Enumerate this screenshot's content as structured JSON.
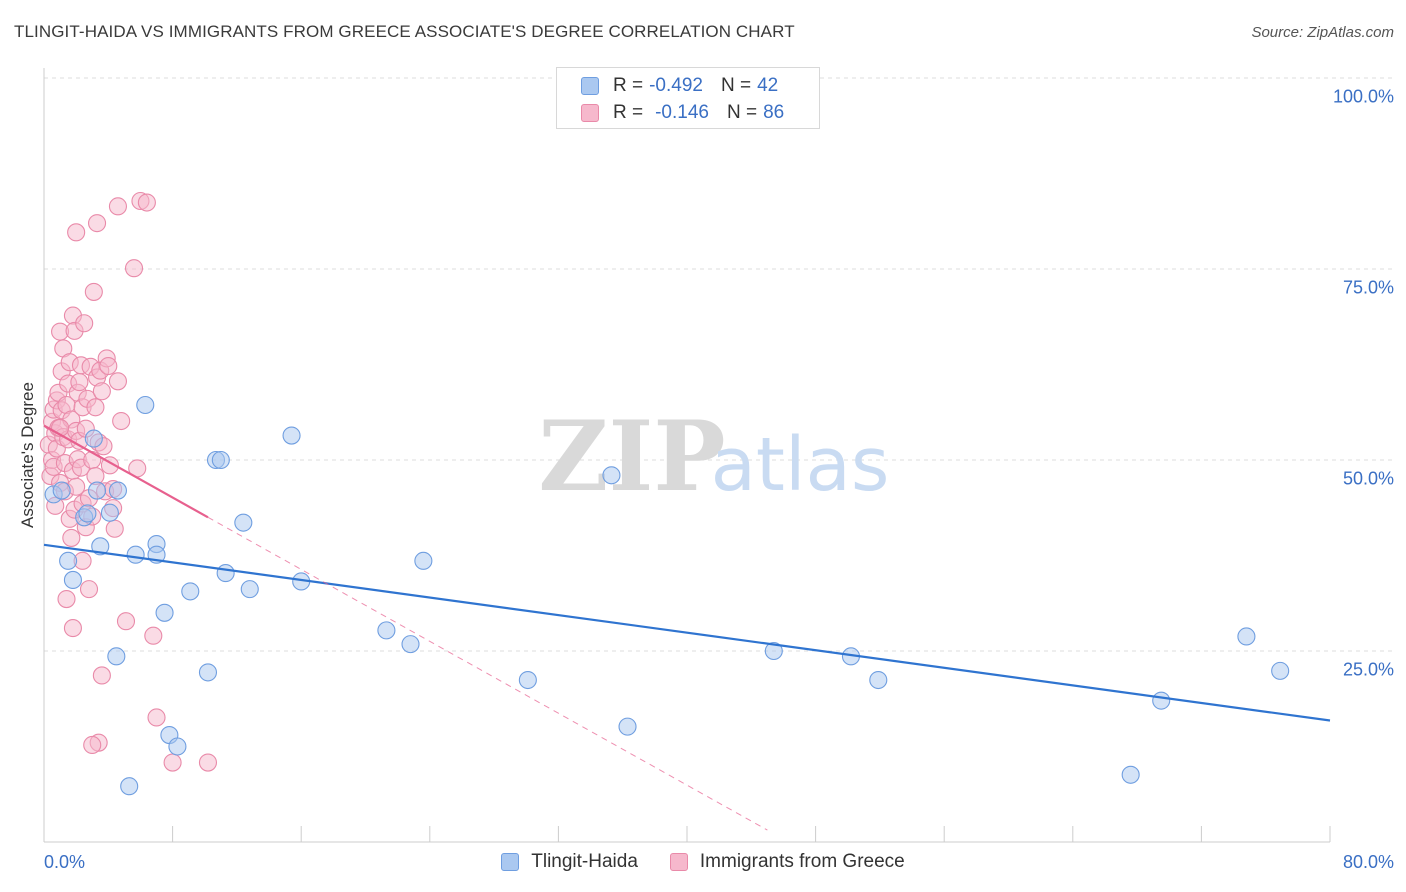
{
  "header": {
    "title": "TLINGIT-HAIDA VS IMMIGRANTS FROM GREECE ASSOCIATE'S DEGREE CORRELATION CHART",
    "source": "Source: ZipAtlas.com"
  },
  "watermark": {
    "zip": "ZIP",
    "atlas": "atlas"
  },
  "legend_top": {
    "rows": [
      {
        "r_label": "R =",
        "r_value": "-0.492",
        "n_label": "N =",
        "n_value": "42"
      },
      {
        "r_label": "R =",
        "r_value": "-0.146",
        "n_label": "N =",
        "n_value": "86"
      }
    ]
  },
  "colors": {
    "blue_fill": "#aac8f0",
    "blue_stroke": "#6f9ee0",
    "blue_line": "#2f74d0",
    "pink_fill": "#f6b8cc",
    "pink_stroke": "#e98aa9",
    "pink_line": "#e7608e",
    "grid": "#dddddd",
    "tick_text": "#3a6fc4"
  },
  "chart_data": {
    "type": "scatter",
    "title": "TLINGIT-HAIDA VS IMMIGRANTS FROM GREECE ASSOCIATE'S DEGREE CORRELATION CHART",
    "xlabel": "",
    "ylabel": "Associate's Degree",
    "xlim": [
      0,
      80
    ],
    "ylim": [
      0,
      100
    ],
    "x_tick_labels": [
      "0.0%",
      "80.0%"
    ],
    "y_ticks": [
      25,
      50,
      75,
      100
    ],
    "y_tick_labels": [
      "25.0%",
      "50.0%",
      "75.0%",
      "100.0%"
    ],
    "grid": true,
    "legend_position": "bottom",
    "series": [
      {
        "name": "Tlingit-Haida",
        "color": "blue",
        "r": -0.492,
        "n": 42,
        "trend": {
          "x": [
            0,
            80
          ],
          "y": [
            38.9,
            15.9
          ],
          "style": "solid"
        },
        "points": [
          [
            0.6,
            45.5
          ],
          [
            1.1,
            46.0
          ],
          [
            1.5,
            36.8
          ],
          [
            1.8,
            34.3
          ],
          [
            2.5,
            42.5
          ],
          [
            2.7,
            43.0
          ],
          [
            3.1,
            52.8
          ],
          [
            3.3,
            46.0
          ],
          [
            3.5,
            38.7
          ],
          [
            4.1,
            43.1
          ],
          [
            4.5,
            24.3
          ],
          [
            4.6,
            46.0
          ],
          [
            5.3,
            7.3
          ],
          [
            5.7,
            37.6
          ],
          [
            6.3,
            57.2
          ],
          [
            7.0,
            39.0
          ],
          [
            7.0,
            37.6
          ],
          [
            7.5,
            30.0
          ],
          [
            7.8,
            14.0
          ],
          [
            8.3,
            12.5
          ],
          [
            9.1,
            32.8
          ],
          [
            10.2,
            22.2
          ],
          [
            10.7,
            50.0
          ],
          [
            11.0,
            50.0
          ],
          [
            11.3,
            35.2
          ],
          [
            12.4,
            41.8
          ],
          [
            12.8,
            33.1
          ],
          [
            15.4,
            53.2
          ],
          [
            16.0,
            34.1
          ],
          [
            21.3,
            27.7
          ],
          [
            22.8,
            25.9
          ],
          [
            23.6,
            36.8
          ],
          [
            30.1,
            21.2
          ],
          [
            35.3,
            48.0
          ],
          [
            36.3,
            15.1
          ],
          [
            45.4,
            25.0
          ],
          [
            50.2,
            24.3
          ],
          [
            51.9,
            21.2
          ],
          [
            67.6,
            8.8
          ],
          [
            69.5,
            18.5
          ],
          [
            74.8,
            26.9
          ],
          [
            76.9,
            22.4
          ]
        ]
      },
      {
        "name": "Immigrants from Greece",
        "color": "pink",
        "r": -0.146,
        "n": 86,
        "trend": {
          "x": [
            0,
            10.2
          ],
          "y": [
            54.5,
            42.5
          ],
          "style": "solid",
          "ext_x": [
            10.2,
            45.0
          ],
          "ext_style": "dashed"
        },
        "points": [
          [
            0.3,
            52.0
          ],
          [
            0.4,
            47.9
          ],
          [
            0.5,
            55.0
          ],
          [
            0.5,
            50.0
          ],
          [
            0.6,
            56.6
          ],
          [
            0.6,
            49.1
          ],
          [
            0.7,
            53.5
          ],
          [
            0.7,
            44.0
          ],
          [
            0.8,
            57.8
          ],
          [
            0.8,
            51.5
          ],
          [
            0.9,
            58.8
          ],
          [
            0.9,
            54.2
          ],
          [
            1.0,
            66.8
          ],
          [
            1.0,
            47.0
          ],
          [
            1.1,
            61.6
          ],
          [
            1.1,
            56.5
          ],
          [
            1.2,
            64.6
          ],
          [
            1.2,
            53.0
          ],
          [
            1.3,
            49.6
          ],
          [
            1.3,
            45.9
          ],
          [
            1.4,
            57.2
          ],
          [
            1.5,
            60.0
          ],
          [
            1.5,
            52.7
          ],
          [
            1.6,
            62.8
          ],
          [
            1.6,
            42.3
          ],
          [
            1.7,
            55.3
          ],
          [
            1.7,
            39.8
          ],
          [
            1.8,
            68.9
          ],
          [
            1.8,
            48.6
          ],
          [
            1.9,
            66.9
          ],
          [
            1.9,
            43.5
          ],
          [
            2.0,
            53.8
          ],
          [
            2.0,
            46.5
          ],
          [
            2.1,
            58.8
          ],
          [
            2.1,
            50.1
          ],
          [
            2.2,
            60.2
          ],
          [
            2.2,
            52.5
          ],
          [
            2.3,
            62.4
          ],
          [
            2.3,
            49.0
          ],
          [
            2.4,
            56.9
          ],
          [
            2.4,
            44.3
          ],
          [
            2.5,
            67.9
          ],
          [
            2.6,
            54.1
          ],
          [
            2.6,
            41.2
          ],
          [
            2.7,
            58.0
          ],
          [
            2.8,
            45.0
          ],
          [
            2.9,
            62.2
          ],
          [
            3.0,
            50.0
          ],
          [
            3.0,
            42.6
          ],
          [
            3.1,
            72.0
          ],
          [
            3.2,
            56.9
          ],
          [
            3.2,
            47.9
          ],
          [
            3.3,
            60.8
          ],
          [
            3.4,
            52.3
          ],
          [
            3.4,
            13.0
          ],
          [
            3.5,
            61.7
          ],
          [
            3.6,
            59.0
          ],
          [
            3.7,
            51.8
          ],
          [
            3.8,
            45.9
          ],
          [
            3.9,
            63.3
          ],
          [
            4.0,
            62.3
          ],
          [
            4.1,
            49.3
          ],
          [
            4.3,
            43.7
          ],
          [
            4.4,
            41.0
          ],
          [
            4.6,
            60.3
          ],
          [
            4.8,
            55.1
          ],
          [
            1.0,
            54.2
          ],
          [
            1.4,
            31.8
          ],
          [
            1.8,
            28.0
          ],
          [
            2.0,
            79.8
          ],
          [
            2.4,
            36.8
          ],
          [
            2.8,
            33.1
          ],
          [
            3.0,
            12.7
          ],
          [
            3.3,
            81.0
          ],
          [
            3.6,
            21.8
          ],
          [
            4.3,
            46.2
          ],
          [
            4.6,
            83.2
          ],
          [
            5.1,
            28.9
          ],
          [
            5.6,
            75.1
          ],
          [
            5.8,
            48.9
          ],
          [
            6.0,
            83.9
          ],
          [
            6.4,
            83.7
          ],
          [
            6.8,
            27.0
          ],
          [
            7.0,
            16.3
          ],
          [
            8.0,
            10.4
          ],
          [
            10.2,
            10.4
          ]
        ]
      }
    ]
  },
  "axis_labels": {
    "y_axis_title": "Associate's Degree",
    "x_min_label": "0.0%",
    "x_max_label": "80.0%",
    "y_labels": [
      "100.0%",
      "75.0%",
      "50.0%",
      "25.0%"
    ]
  },
  "legend_bottom": {
    "items": [
      {
        "label": "Tlingit-Haida"
      },
      {
        "label": "Immigrants from Greece"
      }
    ]
  }
}
